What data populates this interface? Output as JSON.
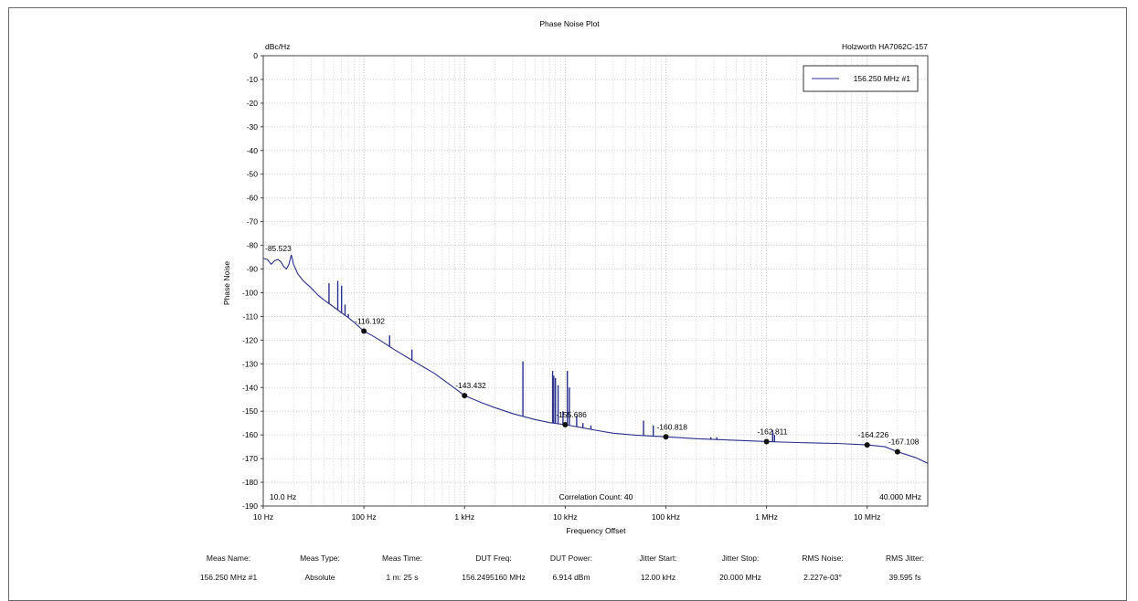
{
  "chart_data": {
    "type": "line",
    "title": "Phase Noise Plot",
    "instrument": "Holzworth HA7062C-157",
    "ylabel": "Phase Noise",
    "yunit": "dBc/Hz",
    "xlabel": "Frequency Offset",
    "x_scale": "log",
    "xlim": [
      10,
      40000000
    ],
    "ylim": [
      -190,
      0
    ],
    "grid": true,
    "legend_position": "top-right",
    "x_ticks": [
      {
        "value": 10,
        "label": "10 Hz"
      },
      {
        "value": 100,
        "label": "100 Hz"
      },
      {
        "value": 1000,
        "label": "1 kHz"
      },
      {
        "value": 10000,
        "label": "10 kHz"
      },
      {
        "value": 100000,
        "label": "100 kHz"
      },
      {
        "value": 1000000,
        "label": "1 MHz"
      },
      {
        "value": 10000000,
        "label": "10 MHz"
      }
    ],
    "y_ticks": [
      0,
      -10,
      -20,
      -30,
      -40,
      -50,
      -60,
      -70,
      -80,
      -90,
      -100,
      -110,
      -120,
      -130,
      -140,
      -150,
      -160,
      -170,
      -180,
      -190
    ],
    "range_start_label": "10.0 Hz",
    "range_stop_label": "40.000 MHz",
    "correlation_label": "Correlation Count: 40",
    "series": [
      {
        "name": "156.250 MHz #1",
        "color": "#2b2f8c",
        "points": [
          [
            10,
            -85.5
          ],
          [
            11,
            -86
          ],
          [
            12,
            -88
          ],
          [
            13,
            -86.5
          ],
          [
            14,
            -86
          ],
          [
            15,
            -87
          ],
          [
            16,
            -89
          ],
          [
            17,
            -90
          ],
          [
            18,
            -88
          ],
          [
            19,
            -84
          ],
          [
            20,
            -88
          ],
          [
            22,
            -92
          ],
          [
            25,
            -95
          ],
          [
            30,
            -98
          ],
          [
            35,
            -101
          ],
          [
            40,
            -103
          ],
          [
            50,
            -106
          ],
          [
            60,
            -108.5
          ],
          [
            70,
            -110.5
          ],
          [
            80,
            -112.5
          ],
          [
            100,
            -116.2
          ],
          [
            120,
            -118
          ],
          [
            150,
            -120.5
          ],
          [
            200,
            -124
          ],
          [
            300,
            -128.5
          ],
          [
            500,
            -134
          ],
          [
            700,
            -138.5
          ],
          [
            1000,
            -143.4
          ],
          [
            1500,
            -146.5
          ],
          [
            2000,
            -148.5
          ],
          [
            3000,
            -151
          ],
          [
            5000,
            -153.5
          ],
          [
            7000,
            -154.8
          ],
          [
            10000,
            -155.7
          ],
          [
            15000,
            -157
          ],
          [
            20000,
            -158
          ],
          [
            30000,
            -159.3
          ],
          [
            50000,
            -160.1
          ],
          [
            100000,
            -160.8
          ],
          [
            200000,
            -161.6
          ],
          [
            500000,
            -162.3
          ],
          [
            1000000,
            -162.8
          ],
          [
            2000000,
            -163.2
          ],
          [
            5000000,
            -163.6
          ],
          [
            10000000,
            -164.2
          ],
          [
            15000000,
            -165
          ],
          [
            20000000,
            -167.1
          ],
          [
            30000000,
            -169.5
          ],
          [
            40000000,
            -172
          ]
        ],
        "spurs": [
          [
            45,
            -96
          ],
          [
            55,
            -95
          ],
          [
            60,
            -97
          ],
          [
            65,
            -105
          ],
          [
            70,
            -109
          ],
          [
            180,
            -118
          ],
          [
            300,
            -124
          ],
          [
            3800,
            -129
          ],
          [
            7500,
            -133
          ],
          [
            7700,
            -135
          ],
          [
            8000,
            -136
          ],
          [
            8500,
            -139
          ],
          [
            9500,
            -150
          ],
          [
            10500,
            -133
          ],
          [
            11000,
            -140
          ],
          [
            13000,
            -152
          ],
          [
            15000,
            -155
          ],
          [
            18000,
            -156
          ],
          [
            60000,
            -154
          ],
          [
            75000,
            -156
          ],
          [
            280000,
            -161
          ],
          [
            320000,
            -161
          ],
          [
            1150000,
            -158
          ],
          [
            1200000,
            -160
          ]
        ]
      }
    ],
    "markers": [
      {
        "x": 10,
        "y": -85.523,
        "label": "-85.523",
        "dot": false
      },
      {
        "x": 100,
        "y": -116.192,
        "label": "-116.192",
        "dot": true
      },
      {
        "x": 1000,
        "y": -143.432,
        "label": "-143.432",
        "dot": true
      },
      {
        "x": 10000,
        "y": -155.686,
        "label": "-155.686",
        "dot": true
      },
      {
        "x": 100000,
        "y": -160.818,
        "label": "-160.818",
        "dot": true
      },
      {
        "x": 1000000,
        "y": -162.811,
        "label": "-162.811",
        "dot": true
      },
      {
        "x": 10000000,
        "y": -164.226,
        "label": "-164.226",
        "dot": true
      },
      {
        "x": 20000000,
        "y": -167.108,
        "label": "-167.108",
        "dot": true
      }
    ]
  },
  "footer": {
    "headers": [
      "Meas Name:",
      "Meas Type:",
      "Meas Time:",
      "DUT Freq:",
      "DUT Power:",
      "Jitter Start:",
      "Jitter Stop:",
      "RMS Noise:",
      "RMS Jitter:"
    ],
    "values": [
      "156.250 MHz #1",
      "Absolute",
      "1 m: 25 s",
      "156.2495160 MHz",
      "6.914 dBm",
      "12.00 kHz",
      "20.000 MHz",
      "2.227e-03°",
      "39.595 fs"
    ]
  }
}
